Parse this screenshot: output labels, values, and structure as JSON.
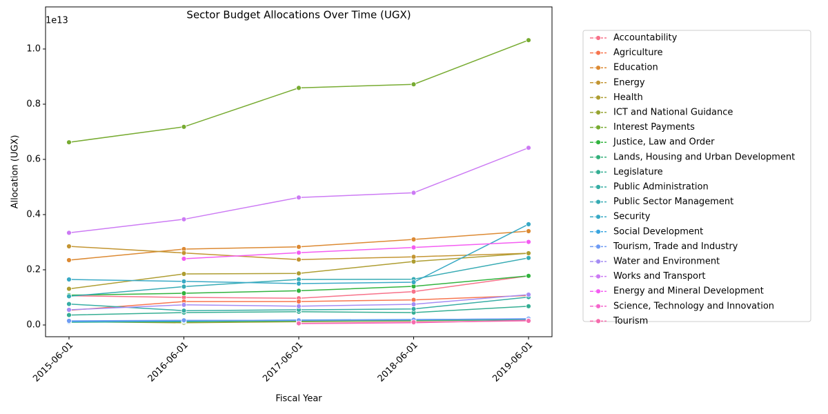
{
  "chart_data": {
    "type": "line",
    "title": "Sector Budget Allocations Over Time (UGX)",
    "x_label": "Fiscal Year",
    "y_label": "Allocation (UGX)",
    "y_offset_label": "1e13",
    "x": [
      "2015-06-01",
      "2016-06-01",
      "2017-06-01",
      "2018-06-01",
      "2019-06-01"
    ],
    "ylim": [
      -0.0425,
      1.1525
    ],
    "yticks": [
      {
        "value": 0,
        "label": "0.0"
      },
      0.2,
      0.4,
      0.6,
      0.8,
      {
        "value": 1,
        "label": "1.0"
      }
    ],
    "legend": "outside-right",
    "series": [
      {
        "name": "Accountability",
        "color": "#f77189",
        "values": [
          0.106,
          0.1,
          0.097,
          0.121,
          0.178
        ]
      },
      {
        "name": "Agriculture",
        "color": "#f7754f",
        "values": [
          0.053,
          0.085,
          0.085,
          0.091,
          0.107
        ]
      },
      {
        "name": "Education",
        "color": "#dc8932",
        "values": [
          0.235,
          0.275,
          0.283,
          0.31,
          0.34
        ]
      },
      {
        "name": "Energy",
        "color": "#c39532",
        "values": [
          0.285,
          0.261,
          0.237,
          0.247,
          0.26
        ]
      },
      {
        "name": "Health",
        "color": "#ae9d31",
        "values": [
          0.131,
          0.185,
          0.187,
          0.23,
          0.26
        ]
      },
      {
        "name": "ICT and National Guidance",
        "color": "#97a431",
        "values": [
          0.012,
          0.008,
          0.012,
          0.015,
          0.02
        ]
      },
      {
        "name": "Interest Payments",
        "color": "#77ab31",
        "values": [
          0.662,
          0.718,
          0.859,
          0.872,
          1.032
        ]
      },
      {
        "name": "Justice, Law and Order",
        "color": "#31b33e",
        "values": [
          0.108,
          0.115,
          0.124,
          0.14,
          0.178
        ]
      },
      {
        "name": "Lands, Housing and Urban Development",
        "color": "#33b07a",
        "values": [
          0.01,
          0.012,
          0.015,
          0.017,
          0.018
        ]
      },
      {
        "name": "Legislature",
        "color": "#35ae93",
        "values": [
          0.036,
          0.045,
          0.048,
          0.045,
          0.068
        ]
      },
      {
        "name": "Public Administration",
        "color": "#36ada4",
        "values": [
          0.076,
          0.052,
          0.055,
          0.058,
          0.101
        ]
      },
      {
        "name": "Public Sector Management",
        "color": "#37abb4",
        "values": [
          0.104,
          0.139,
          0.165,
          0.166,
          0.243
        ]
      },
      {
        "name": "Security",
        "color": "#38a9c5",
        "values": [
          0.165,
          0.158,
          0.15,
          0.155,
          0.365
        ]
      },
      {
        "name": "Social Development",
        "color": "#3aa5df",
        "values": [
          0.012,
          0.015,
          0.018,
          0.02,
          0.022
        ]
      },
      {
        "name": "Tourism, Trade and Industry",
        "color": "#6e9bf4",
        "values": [
          0.015,
          0.017,
          0.017,
          0.019,
          0.023
        ]
      },
      {
        "name": "Water and Environment",
        "color": "#a48cf4",
        "values": [
          0.055,
          0.073,
          0.068,
          0.075,
          0.11
        ]
      },
      {
        "name": "Works and Transport",
        "color": "#cc7af4",
        "values": [
          0.334,
          0.383,
          0.462,
          0.479,
          0.642
        ]
      },
      {
        "name": "Energy and Mineral Development",
        "color": "#f45cf2",
        "values": [
          null,
          0.24,
          0.262,
          0.281,
          0.301
        ]
      },
      {
        "name": "Science, Technology and Innovation",
        "color": "#f565cc",
        "values": [
          null,
          null,
          0.005,
          0.008,
          0.017
        ]
      },
      {
        "name": "Tourism",
        "color": "#f66bad",
        "values": [
          null,
          null,
          0.006,
          0.01,
          0.015
        ]
      }
    ]
  }
}
